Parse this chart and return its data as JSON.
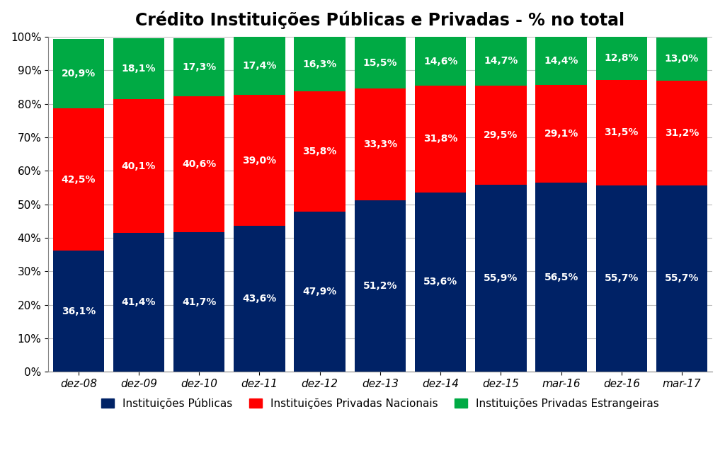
{
  "title": "Crédito Instituições Públicas e Privadas - % no total",
  "categories": [
    "dez-08",
    "dez-09",
    "dez-10",
    "dez-11",
    "dez-12",
    "dez-13",
    "dez-14",
    "dez-15",
    "mar-16",
    "dez-16",
    "mar-17"
  ],
  "publicas": [
    36.1,
    41.4,
    41.7,
    43.6,
    47.9,
    51.2,
    53.6,
    55.9,
    56.5,
    55.7,
    55.7
  ],
  "privadas_nacionais": [
    42.5,
    40.1,
    40.6,
    39.0,
    35.8,
    33.3,
    31.8,
    29.5,
    29.1,
    31.5,
    31.2
  ],
  "privadas_estrangeiras": [
    20.9,
    18.1,
    17.3,
    17.4,
    16.3,
    15.5,
    14.6,
    14.7,
    14.4,
    12.8,
    13.0
  ],
  "publicas_labels": [
    "36,1%",
    "41,4%",
    "41,7%",
    "43,6%",
    "47,9%",
    "51,2%",
    "53,6%",
    "55,9%",
    "56,5%",
    "55,7%",
    "55,7%"
  ],
  "nacionais_labels": [
    "42,5%",
    "40,1%",
    "40,6%",
    "39,0%",
    "35,8%",
    "33,3%",
    "31,8%",
    "29,5%",
    "29,1%",
    "31,5%",
    "31,2%"
  ],
  "estrangeiras_labels": [
    "20,9%",
    "18,1%",
    "17,3%",
    "17,4%",
    "16,3%",
    "15,5%",
    "14,6%",
    "14,7%",
    "14,4%",
    "12,8%",
    "13,0%"
  ],
  "color_publicas": "#002266",
  "color_privadas_nacionais": "#FF0000",
  "color_privadas_estrangeiras": "#00AA44",
  "legend_labels": [
    "Instituições Públicas",
    "Instituições Privadas Nacionais",
    "Instituições Privadas Estrangeiras"
  ],
  "background_color": "#FFFFFF",
  "grid_color": "#BBBBBB",
  "title_fontsize": 17,
  "label_fontsize": 10,
  "tick_fontsize": 11,
  "legend_fontsize": 11
}
